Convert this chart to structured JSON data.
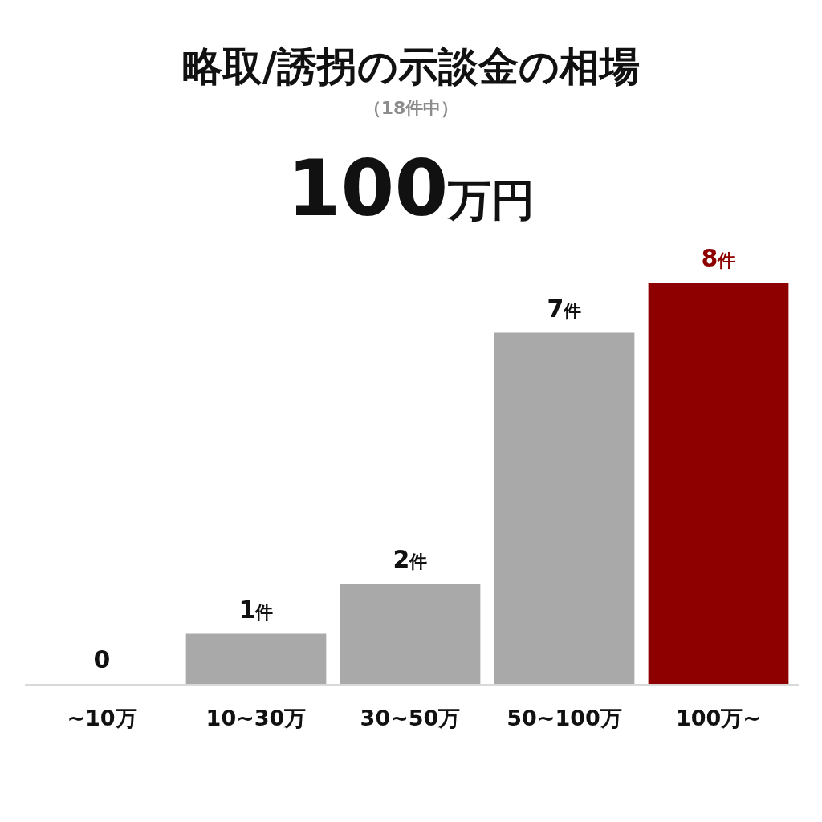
{
  "chart_data": {
    "type": "bar",
    "title": "略取/誘拐の示談金の相場",
    "subtitle": "（18件中）",
    "annotations": [
      "100万円"
    ],
    "categories": [
      "~10万",
      "10~30万",
      "30~50万",
      "50~100万",
      "100万~"
    ],
    "values": [
      0,
      1,
      2,
      7,
      8
    ],
    "colors": [
      "#a9a9a9",
      "#a9a9a9",
      "#a9a9a9",
      "#a9a9a9",
      "#8e0000"
    ],
    "value_labels": [
      "0",
      "1件",
      "2件",
      "7件",
      "8件"
    ]
  }
}
